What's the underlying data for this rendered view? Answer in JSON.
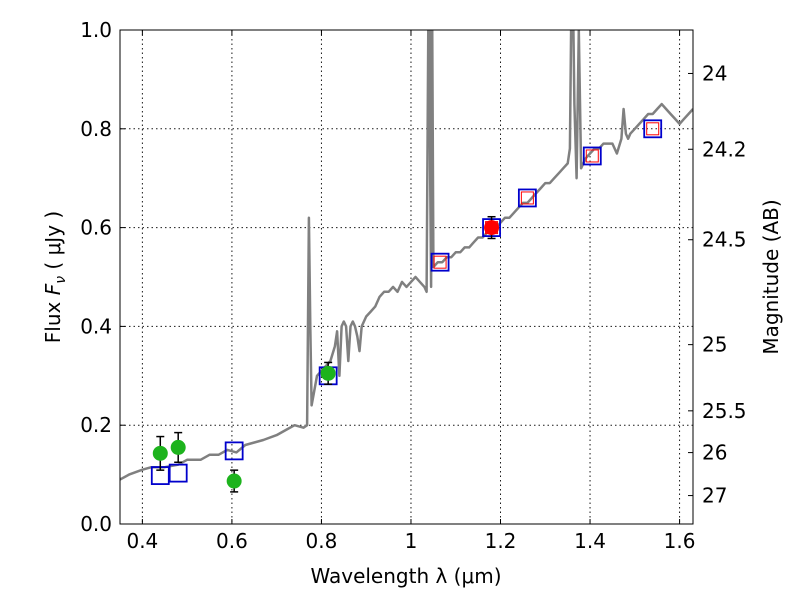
{
  "chart_data": {
    "type": "scatter",
    "xlabel": "Wavelength  λ (μm)",
    "ylabel": "Flux  F_ν  ( μJy )",
    "ylabel_parts": {
      "prefix": "Flux  ",
      "symbol": "F",
      "subscript": "ν",
      "unit": "  ( μJy )"
    },
    "ylabel_right": "Magnitude (AB)",
    "xlim": [
      0.35,
      1.63
    ],
    "ylim": [
      0.0,
      1.0
    ],
    "grid": true,
    "x_ticks": [
      0.4,
      0.6,
      0.8,
      1.0,
      1.2,
      1.4,
      1.6
    ],
    "x_tick_labels": [
      "0.4",
      "0.6",
      "0.8",
      "1",
      "1.2",
      "1.4",
      "1.6"
    ],
    "y_ticks": [
      0.0,
      0.2,
      0.4,
      0.6,
      0.8,
      1.0
    ],
    "y_tick_labels": [
      "0.0",
      "0.2",
      "0.4",
      "0.6",
      "0.8",
      "1.0"
    ],
    "right_ticks": [
      {
        "label": "24",
        "mag": 24.0
      },
      {
        "label": "24.2",
        "mag": 24.2
      },
      {
        "label": "24.5",
        "mag": 24.5
      },
      {
        "label": "25",
        "mag": 25.0
      },
      {
        "label": "25.5",
        "mag": 25.5
      },
      {
        "label": "26",
        "mag": 26.0
      },
      {
        "label": "27",
        "mag": 27.0
      }
    ],
    "series": [
      {
        "kind": "line",
        "color": "#808080",
        "x": [
          0.35,
          0.37,
          0.4,
          0.42,
          0.45,
          0.48,
          0.5,
          0.53,
          0.55,
          0.57,
          0.59,
          0.61,
          0.63,
          0.65,
          0.67,
          0.7,
          0.72,
          0.74,
          0.76,
          0.768,
          0.772,
          0.775,
          0.778,
          0.782,
          0.79,
          0.8,
          0.81,
          0.82,
          0.83,
          0.835,
          0.84,
          0.845,
          0.85,
          0.855,
          0.86,
          0.865,
          0.87,
          0.875,
          0.88,
          0.885,
          0.89,
          0.9,
          0.91,
          0.92,
          0.93,
          0.94,
          0.95,
          0.96,
          0.97,
          0.98,
          0.99,
          1.0,
          1.01,
          1.02,
          1.03,
          1.035,
          1.04,
          1.043,
          1.045,
          1.047,
          1.05,
          1.06,
          1.07,
          1.08,
          1.09,
          1.1,
          1.11,
          1.12,
          1.13,
          1.14,
          1.15,
          1.16,
          1.17,
          1.18,
          1.19,
          1.2,
          1.21,
          1.22,
          1.23,
          1.24,
          1.25,
          1.26,
          1.27,
          1.28,
          1.29,
          1.3,
          1.31,
          1.32,
          1.33,
          1.34,
          1.35,
          1.355,
          1.36,
          1.365,
          1.37,
          1.375,
          1.38,
          1.39,
          1.4,
          1.41,
          1.42,
          1.43,
          1.44,
          1.45,
          1.46,
          1.47,
          1.475,
          1.48,
          1.485,
          1.49,
          1.5,
          1.51,
          1.52,
          1.53,
          1.54,
          1.55,
          1.56,
          1.57,
          1.58,
          1.59,
          1.6,
          1.61,
          1.62,
          1.63
        ],
        "y": [
          0.09,
          0.1,
          0.11,
          0.115,
          0.115,
          0.12,
          0.13,
          0.13,
          0.14,
          0.14,
          0.15,
          0.145,
          0.16,
          0.165,
          0.17,
          0.18,
          0.19,
          0.2,
          0.195,
          0.2,
          0.62,
          0.4,
          0.24,
          0.26,
          0.3,
          0.31,
          0.32,
          0.33,
          0.36,
          0.39,
          0.3,
          0.4,
          0.41,
          0.4,
          0.33,
          0.4,
          0.41,
          0.4,
          0.38,
          0.35,
          0.4,
          0.42,
          0.43,
          0.44,
          0.46,
          0.47,
          0.47,
          0.48,
          0.47,
          0.49,
          0.48,
          0.49,
          0.5,
          0.49,
          0.48,
          0.47,
          1.2,
          0.7,
          0.48,
          1.1,
          0.52,
          0.53,
          0.53,
          0.54,
          0.54,
          0.55,
          0.55,
          0.56,
          0.56,
          0.57,
          0.58,
          0.58,
          0.59,
          0.59,
          0.6,
          0.61,
          0.62,
          0.62,
          0.63,
          0.64,
          0.65,
          0.65,
          0.66,
          0.67,
          0.68,
          0.69,
          0.69,
          0.7,
          0.71,
          0.72,
          0.73,
          0.76,
          1.2,
          0.85,
          0.7,
          1.0,
          0.72,
          0.74,
          0.75,
          0.76,
          0.76,
          0.77,
          0.77,
          0.77,
          0.75,
          0.78,
          0.84,
          0.79,
          0.78,
          0.79,
          0.8,
          0.81,
          0.82,
          0.83,
          0.83,
          0.84,
          0.85,
          0.84,
          0.83,
          0.82,
          0.81,
          0.82,
          0.83,
          0.84
        ]
      },
      {
        "kind": "points",
        "marker": "open-square",
        "color": "#0000cc",
        "x": [
          0.44,
          0.48,
          0.605,
          0.815,
          1.065,
          1.18,
          1.26,
          1.405,
          1.54
        ],
        "y": [
          0.098,
          0.103,
          0.148,
          0.3,
          0.53,
          0.6,
          0.66,
          0.745,
          0.8
        ]
      },
      {
        "kind": "points",
        "marker": "inner-square",
        "color": "#ff0000",
        "x": [
          1.065,
          1.18,
          1.26,
          1.405,
          1.54
        ],
        "y": [
          0.53,
          0.6,
          0.66,
          0.745,
          0.8
        ]
      },
      {
        "kind": "points",
        "marker": "filled-circle",
        "color": "#1db31d",
        "x": [
          0.44,
          0.48,
          0.605,
          0.815
        ],
        "y": [
          0.143,
          0.155,
          0.087,
          0.305
        ],
        "yerr": [
          0.034,
          0.03,
          0.022,
          0.022
        ]
      },
      {
        "kind": "points",
        "marker": "filled-circle",
        "color": "#ff0000",
        "x": [
          1.18
        ],
        "y": [
          0.6
        ],
        "yerr": [
          0.022
        ]
      }
    ]
  }
}
